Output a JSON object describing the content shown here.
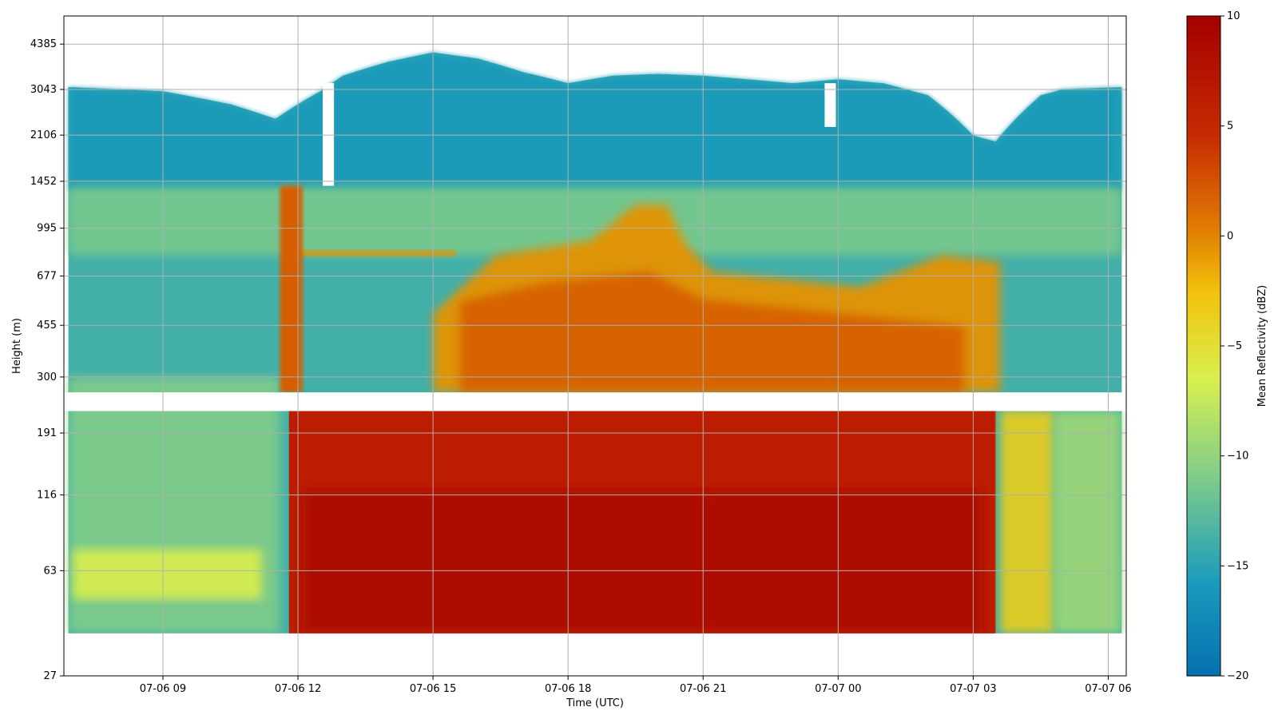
{
  "chart_data": {
    "type": "heatmap",
    "title": "",
    "xlabel": "Time (UTC)",
    "ylabel": "Height (m)",
    "x_ticks": [
      "07-06 09",
      "07-06 12",
      "07-06 15",
      "07-06 18",
      "07-06 21",
      "07-07 00",
      "07-07 03",
      "07-07 06"
    ],
    "x_range_hours": [
      6.8,
      30.4
    ],
    "x_tick_hours": [
      9,
      12,
      15,
      18,
      21,
      24,
      27,
      30
    ],
    "y_ticks": [
      "27",
      "63",
      "116",
      "191",
      "300",
      "455",
      "677",
      "995",
      "1452",
      "2106",
      "3043",
      "4385"
    ],
    "y_scale": "log",
    "y_range": [
      27,
      5500
    ],
    "grid": true,
    "colorbar": {
      "label": "Mean Reflectivity (dBZ)",
      "min": -20,
      "max": 10,
      "ticks": [
        "10",
        "5",
        "0",
        "−5",
        "−10",
        "−15",
        "−20"
      ],
      "tick_values": [
        10,
        5,
        0,
        -5,
        -10,
        -15,
        -20
      ],
      "colormap": [
        "#0571b0",
        "#1a9bbd",
        "#7fcc8a",
        "#d9ef4f",
        "#f2c20a",
        "#e07b04",
        "#c62a02",
        "#a50000"
      ]
    },
    "data_gap_heights_m": [
      228,
      265
    ],
    "echo_top_m": {
      "hours": [
        6.9,
        8,
        9,
        10.5,
        11.5,
        12.5,
        13,
        14,
        15,
        16,
        17,
        18,
        19,
        20,
        21,
        22,
        23,
        24,
        25,
        26,
        26.5,
        27,
        27.5,
        28.5,
        29,
        30.3
      ],
      "heights": [
        3100,
        3050,
        3000,
        2700,
        2400,
        3000,
        3400,
        3800,
        4100,
        3900,
        3500,
        3200,
        3400,
        3450,
        3400,
        3300,
        3200,
        3300,
        3200,
        2900,
        2500,
        2100,
        2000,
        2900,
        3050,
        3100
      ]
    },
    "regions": [
      {
        "name": "clear-air-background",
        "dbz": -14
      },
      {
        "name": "upper-layer",
        "dbz": -16
      },
      {
        "name": "rain-core-low-levels",
        "dbz": 9,
        "hours": [
          11.8,
          27.5
        ],
        "heights": [
          38,
          230
        ]
      },
      {
        "name": "mid-level-enhanced",
        "dbz": 3,
        "hours": [
          15,
          27.5
        ],
        "heights": [
          265,
          900
        ]
      }
    ]
  }
}
